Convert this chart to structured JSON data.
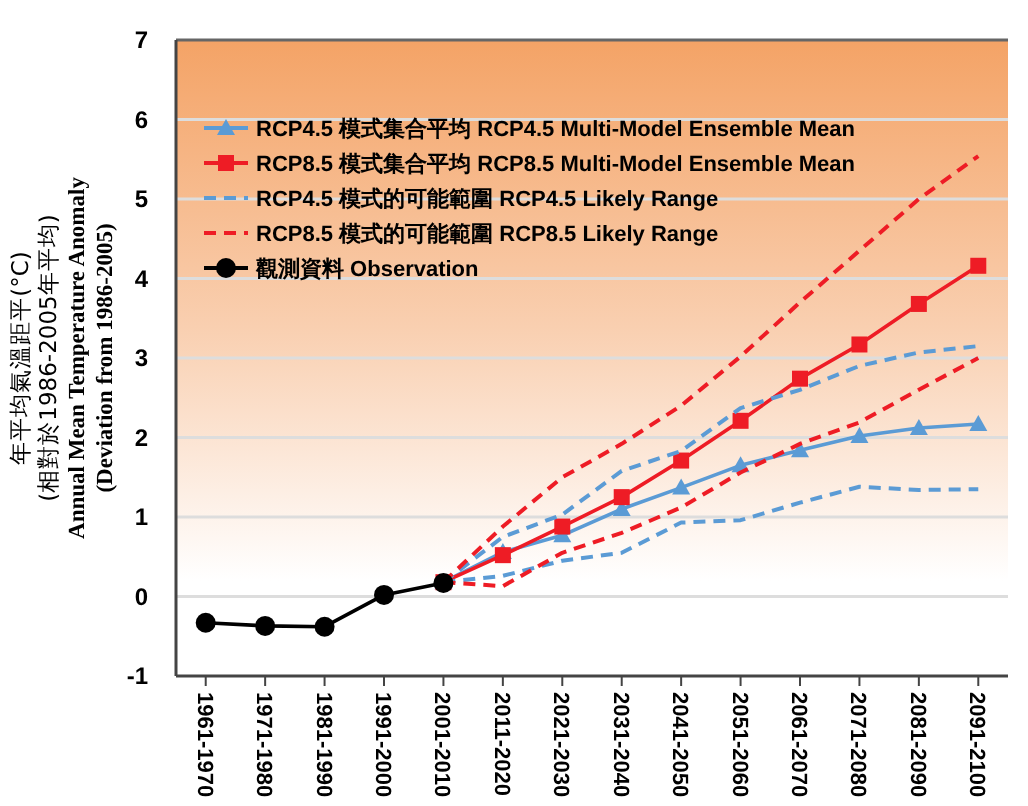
{
  "chart_data": {
    "type": "line",
    "ylabel": "年平均氣溫距平(°C)\n(相對於1986-2005年平均)\nAnnual Mean Temperature Anomaly\n(Deviation from 1986-2005)",
    "categories": [
      "1961-1970",
      "1971-1980",
      "1981-1990",
      "1991-2000",
      "2001-2010",
      "2011-2020",
      "2021-2030",
      "2031-2040",
      "2041-2050",
      "2051-2060",
      "2061-2070",
      "2071-2080",
      "2081-2090",
      "2091-2100"
    ],
    "ylim": [
      -1,
      7
    ],
    "yticks": [
      -1,
      0,
      1,
      2,
      3,
      4,
      5,
      6,
      7
    ],
    "grid": "y",
    "legend": "top left",
    "series": [
      {
        "name": "RCP4.5 模式集合平均 RCP4.5 Multi-Model Ensemble Mean",
        "color": "#5b9bd5",
        "marker": "triangle",
        "line_style": "solid",
        "values": [
          null,
          null,
          null,
          null,
          0.18,
          0.56,
          0.77,
          1.1,
          1.37,
          1.65,
          1.84,
          2.02,
          2.12,
          2.17
        ]
      },
      {
        "name": "RCP8.5 模式集合平均 RCP8.5 Multi-Model Ensemble Mean",
        "color": "#ee1c25",
        "marker": "square",
        "line_style": "solid",
        "values": [
          null,
          null,
          null,
          null,
          0.18,
          0.52,
          0.88,
          1.25,
          1.71,
          2.21,
          2.74,
          3.17,
          3.68,
          4.16
        ]
      },
      {
        "name": "RCP4.5 模式的可能範圍 RCP4.5 Likely Range",
        "color": "#5b9bd5",
        "marker": "none",
        "line_style": "dashed",
        "values": [
          null,
          null,
          null,
          null,
          0.18,
          0.75,
          1.03,
          1.58,
          1.83,
          2.37,
          2.6,
          2.9,
          3.07,
          3.15
        ]
      },
      {
        "color": "#5b9bd5",
        "marker": "none",
        "line_style": "dashed",
        "values": [
          null,
          null,
          null,
          null,
          0.18,
          0.26,
          0.45,
          0.55,
          0.93,
          0.96,
          1.18,
          1.38,
          1.34,
          1.35
        ]
      },
      {
        "name": "RCP8.5 模式的可能範圍 RCP8.5 Likely Range",
        "color": "#ee1c25",
        "marker": "none",
        "line_style": "dashed",
        "values": [
          null,
          null,
          null,
          null,
          0.18,
          0.88,
          1.5,
          1.92,
          2.4,
          3.02,
          3.7,
          4.35,
          5.0,
          5.54
        ]
      },
      {
        "color": "#ee1c25",
        "marker": "none",
        "line_style": "dashed",
        "values": [
          null,
          null,
          null,
          null,
          0.18,
          0.13,
          0.55,
          0.8,
          1.12,
          1.56,
          1.92,
          2.19,
          2.6,
          3.0
        ]
      },
      {
        "name": "觀測資料 Observation",
        "color": "#000000",
        "marker": "circle",
        "line_style": "solid",
        "values": [
          -0.33,
          -0.37,
          -0.38,
          0.02,
          0.17,
          null,
          null,
          null,
          null,
          null,
          null,
          null,
          null,
          null
        ]
      }
    ]
  }
}
